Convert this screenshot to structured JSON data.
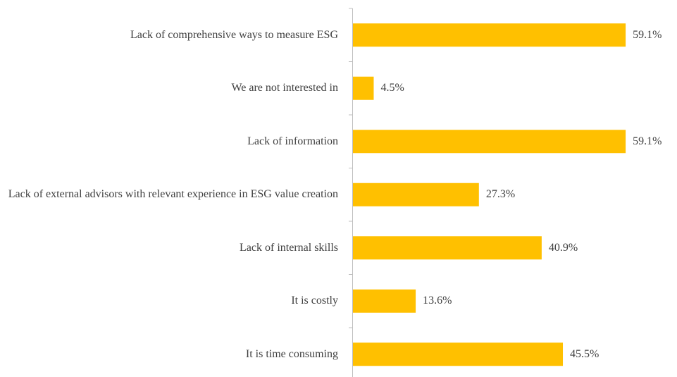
{
  "chart_data": {
    "type": "bar",
    "orientation": "horizontal",
    "categories": [
      "Lack of comprehensive ways to measure ESG",
      "We are not interested in",
      "Lack of information",
      "Lack of external advisors with relevant experience in ESG value creation",
      "Lack of internal skills",
      "It is costly",
      "It is time consuming"
    ],
    "values": [
      59.1,
      4.5,
      59.1,
      27.3,
      40.9,
      13.6,
      45.5
    ],
    "value_labels": [
      "59.1%",
      "4.5%",
      "59.1%",
      "27.3%",
      "40.9%",
      "13.6%",
      "45.5%"
    ],
    "color": "#ffc000"
  }
}
